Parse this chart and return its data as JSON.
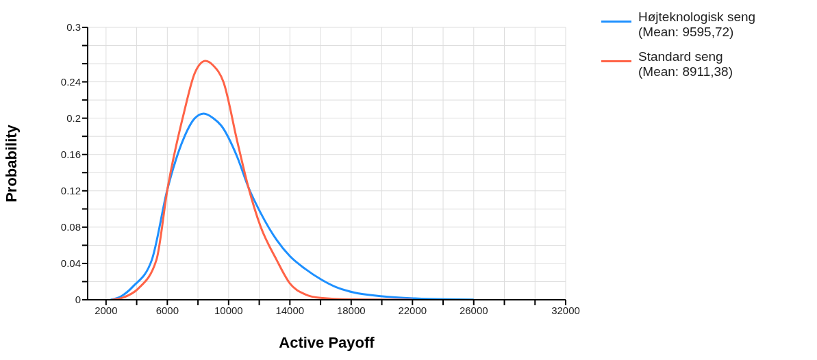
{
  "chart_data": {
    "type": "line",
    "xlabel": "Active Payoff",
    "ylabel": "Probability",
    "xlim": [
      800,
      32000
    ],
    "xticks": [
      2000,
      {
        "value": 4000,
        "label": null
      },
      6000,
      {
        "value": 8000,
        "label": null
      },
      10000,
      {
        "value": 12000,
        "label": null
      },
      14000,
      {
        "value": 16000,
        "label": null
      },
      18000,
      {
        "value": 20000,
        "label": null
      },
      22000,
      {
        "value": 24000,
        "label": null
      },
      26000,
      {
        "value": 28000,
        "label": null
      },
      {
        "value": 30000,
        "label": null
      },
      32000
    ],
    "ylim": [
      0,
      0.3
    ],
    "yticks": [
      0,
      {
        "value": 0.02,
        "label": null
      },
      0.04,
      {
        "value": 0.06,
        "label": null
      },
      0.08,
      {
        "value": 0.1,
        "label": null
      },
      0.12,
      {
        "value": 0.14,
        "label": null
      },
      0.16,
      {
        "value": 0.18,
        "label": null
      },
      0.2,
      {
        "value": 0.22,
        "label": null
      },
      0.24,
      {
        "value": 0.26,
        "label": null
      },
      {
        "value": 0.28,
        "label": null
      },
      0.3
    ],
    "grid": true,
    "legend": "top right",
    "series": [
      {
        "name": "Højteknologisk seng\n(Mean: 9595,72)",
        "color": "#1e90ff",
        "x": [
          2300,
          3000,
          3780,
          4990,
          6010,
          7100,
          7800,
          8380,
          9000,
          9510,
          10570,
          11290,
          12080,
          13130,
          14000,
          15000,
          16070,
          17000,
          18110,
          20050,
          22180,
          24130,
          26000
        ],
        "values": [
          0,
          0.004,
          0.015,
          0.044,
          0.122,
          0.179,
          0.2,
          0.205,
          0.2,
          0.192,
          0.157,
          0.124,
          0.096,
          0.066,
          0.048,
          0.034,
          0.022,
          0.014,
          0.0083,
          0.0038,
          0.0015,
          0.0005,
          0.0002
        ]
      },
      {
        "name": "Standard seng\n(Mean: 8911,38)",
        "color": "#ff6347",
        "x": [
          2400,
          3200,
          4080,
          5290,
          6010,
          7100,
          7800,
          8490,
          9000,
          9660,
          10570,
          11290,
          12080,
          13130,
          14000,
          15000,
          16000,
          18000,
          22000
        ],
        "values": [
          0,
          0.003,
          0.012,
          0.044,
          0.122,
          0.207,
          0.25,
          0.263,
          0.258,
          0.24,
          0.174,
          0.124,
          0.081,
          0.044,
          0.018,
          0.006,
          0.002,
          0.0003,
          0
        ]
      }
    ]
  }
}
